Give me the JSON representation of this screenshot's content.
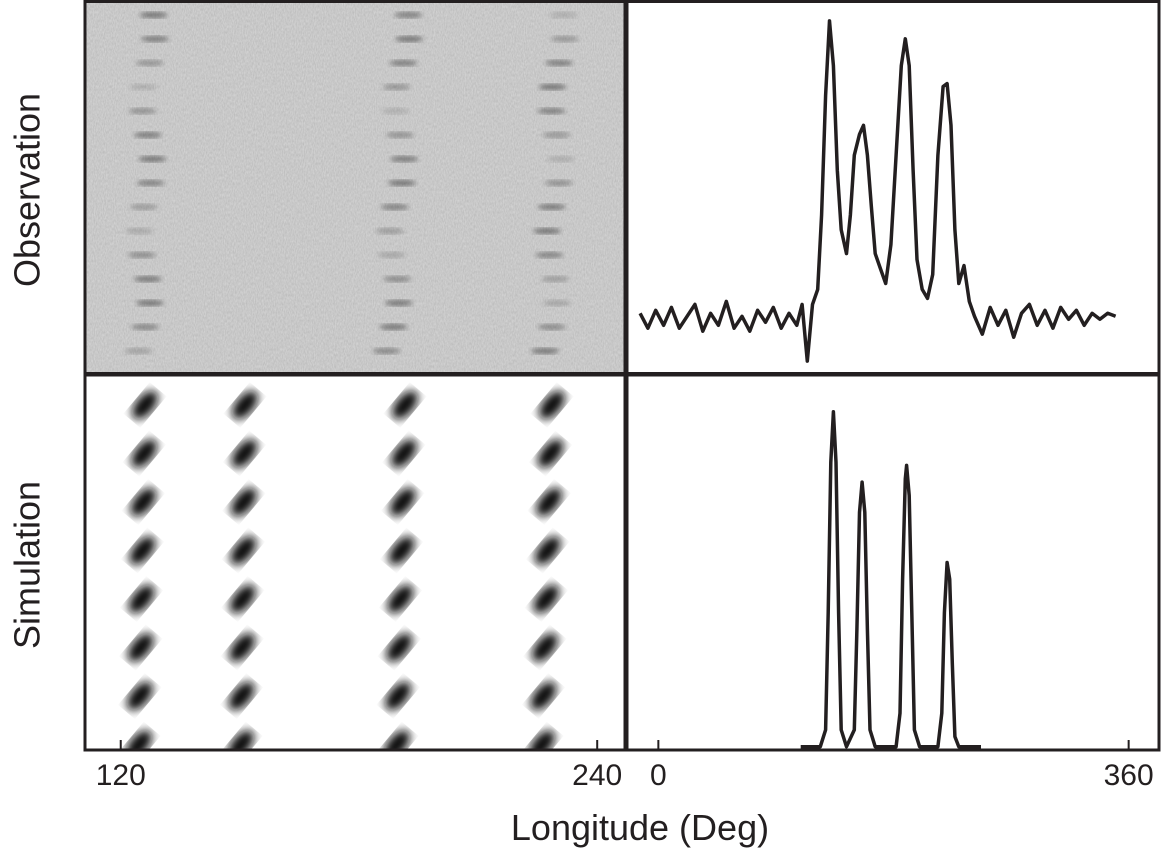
{
  "xlabel": "Longitude (Deg)",
  "chart_data": [
    {
      "type": "image",
      "ylabel": "Observation"
    },
    {
      "type": "line",
      "xlim": [
        -24,
        384
      ],
      "ylim": [
        -0.18,
        1.07
      ],
      "x": [
        -14,
        -8,
        -2,
        4,
        10,
        16,
        22,
        28,
        34,
        40,
        46,
        52,
        58,
        64,
        70,
        76,
        82,
        88,
        94,
        100,
        106,
        110,
        114,
        118,
        122,
        125,
        128,
        131,
        134,
        137,
        140,
        144,
        147,
        150,
        154,
        157,
        160,
        163,
        166,
        170,
        174,
        178,
        182,
        186,
        189,
        192,
        195,
        198,
        202,
        206,
        210,
        214,
        218,
        221,
        224,
        227,
        230,
        234,
        238,
        242,
        248,
        254,
        260,
        266,
        272,
        278,
        284,
        290,
        296,
        302,
        308,
        314,
        320,
        326,
        332,
        338,
        344,
        350
      ],
      "series": [
        {
          "color": "#231f20",
          "values": [
            0.02,
            -0.03,
            0.03,
            -0.02,
            0.04,
            -0.03,
            0.01,
            0.05,
            -0.04,
            0.02,
            -0.02,
            0.06,
            -0.03,
            0.01,
            -0.04,
            0.03,
            -0.01,
            0.04,
            -0.03,
            0.02,
            -0.02,
            0.05,
            -0.14,
            0.05,
            0.1,
            0.35,
            0.75,
            1.0,
            0.85,
            0.5,
            0.3,
            0.22,
            0.35,
            0.55,
            0.62,
            0.65,
            0.55,
            0.38,
            0.22,
            0.17,
            0.12,
            0.25,
            0.55,
            0.85,
            0.94,
            0.85,
            0.5,
            0.2,
            0.1,
            0.07,
            0.15,
            0.55,
            0.78,
            0.79,
            0.65,
            0.3,
            0.12,
            0.18,
            0.06,
            0.01,
            -0.05,
            0.04,
            -0.02,
            0.03,
            -0.06,
            0.02,
            0.05,
            -0.02,
            0.03,
            -0.03,
            0.04,
            0.0,
            0.03,
            -0.02,
            0.02,
            0.0,
            0.02,
            0.01
          ]
        }
      ]
    },
    {
      "type": "image",
      "ylabel": "Simulation",
      "xlim": [
        111,
        247
      ],
      "xticks": [
        120,
        240
      ]
    },
    {
      "type": "line",
      "xlim": [
        -24,
        384
      ],
      "ylim": [
        -0.01,
        1.11
      ],
      "xticks": [
        0,
        360
      ],
      "x": [
        109,
        124,
        128,
        130,
        132,
        134,
        136,
        138,
        140,
        144,
        150,
        152,
        154,
        156,
        158,
        160,
        162,
        166,
        182,
        185,
        187,
        189,
        190,
        192,
        194,
        196,
        200,
        214,
        217,
        219,
        221,
        223,
        225,
        227,
        230,
        247
      ],
      "series": [
        {
          "color": "#231f20",
          "values": [
            0,
            0,
            0.05,
            0.4,
            0.85,
            1.0,
            0.85,
            0.4,
            0.05,
            0,
            0.05,
            0.35,
            0.7,
            0.79,
            0.7,
            0.35,
            0.05,
            0,
            0,
            0.1,
            0.5,
            0.8,
            0.84,
            0.75,
            0.4,
            0.05,
            0,
            0,
            0.1,
            0.4,
            0.55,
            0.5,
            0.25,
            0.03,
            0,
            0
          ]
        }
      ]
    }
  ]
}
